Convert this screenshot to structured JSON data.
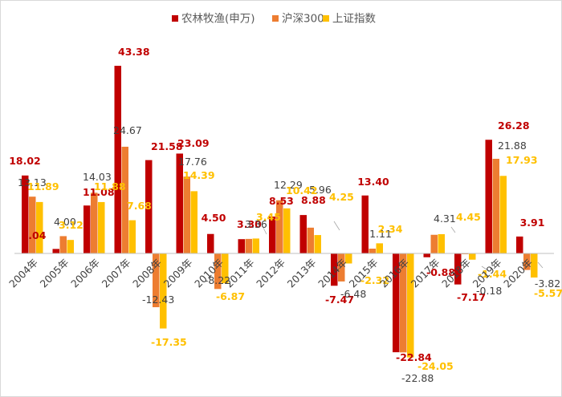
{
  "legend": {
    "position": "top-center"
  },
  "colors": {
    "series_1": "#C00000",
    "series_2": "#ED7D31",
    "series_3": "#FFC000",
    "label_bold_red": "#C00000",
    "label_gray": "#404040",
    "label_gold": "#FFC000",
    "axis": "#BFBFBF",
    "leader": "#A6A6A6"
  },
  "chart_data": {
    "type": "bar",
    "categories": [
      "2004年",
      "2005年",
      "2006年",
      "2007年",
      "2008年",
      "2009年",
      "2010年",
      "2011年",
      "2012年",
      "2013年",
      "2014年",
      "2015年",
      "2016年",
      "2017年",
      "2018年",
      "2019年",
      "2020年"
    ],
    "series": [
      {
        "name": "农林牧渔(申万)",
        "values": [
          18.02,
          1.04,
          11.08,
          43.38,
          21.58,
          23.09,
          4.5,
          3.3,
          8.53,
          8.88,
          -7.47,
          13.4,
          -22.84,
          -0.88,
          -7.17,
          26.28,
          3.91
        ],
        "labels": [
          "18.02",
          "1.04",
          "11.08",
          "43.38",
          "21.58",
          "23.09",
          "4.50",
          "3.30",
          "8.53",
          "8.88",
          "-7.47",
          "13.40",
          "-22.84",
          "-0.88",
          "-7.17",
          "26.28",
          "3.91"
        ]
      },
      {
        "name": "沪深300",
        "values": [
          13.13,
          4.0,
          14.03,
          24.67,
          -12.43,
          17.76,
          -8.22,
          3.36,
          12.29,
          5.96,
          -6.48,
          1.11,
          -22.88,
          4.31,
          -0.18,
          21.88,
          -3.82
        ],
        "labels": [
          "13.13",
          "4.00",
          "14.03",
          "24.67",
          "-12.43",
          "17.76",
          "-8.22",
          "3.36",
          "12.29",
          "5.96",
          "-6.48",
          "1.11",
          "-22.88",
          "4.31",
          "-0.18",
          "21.88",
          "-3.82"
        ]
      },
      {
        "name": "上证指数",
        "values": [
          11.89,
          3.12,
          11.88,
          7.68,
          -17.35,
          14.39,
          -6.87,
          3.45,
          10.42,
          4.25,
          -2.32,
          2.34,
          -24.05,
          4.45,
          -1.44,
          17.93,
          -5.57
        ],
        "labels": [
          "11.89",
          "3.12",
          "11.88",
          "7.68",
          "-17.35",
          "14.39",
          "-6.87",
          "3.45",
          "10.42",
          "4.25",
          "-2.32",
          "2.34",
          "-24.05",
          "4.45",
          "-1.44",
          "17.93",
          "-5.57"
        ]
      }
    ],
    "xlabel": "",
    "ylabel": "",
    "ylim": [
      -26,
      46
    ],
    "grid": false,
    "y_axis_visible": false
  }
}
